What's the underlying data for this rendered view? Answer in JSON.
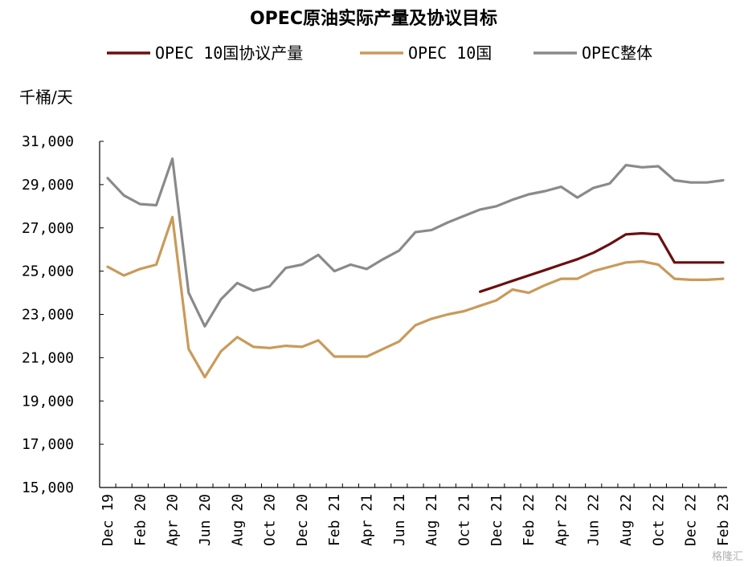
{
  "chart_data": {
    "type": "line",
    "title": "OPEC原油实际产量及协议目标",
    "ylabel": "千桶/天",
    "xlabel": "",
    "ylim": [
      15000,
      31000
    ],
    "yticks": [
      15000,
      17000,
      19000,
      21000,
      23000,
      25000,
      27000,
      29000,
      31000
    ],
    "ytick_labels": [
      "15,000",
      "17,000",
      "19,000",
      "21,000",
      "23,000",
      "25,000",
      "27,000",
      "29,000",
      "31,000"
    ],
    "x": [
      "Dec 19",
      "Jan 20",
      "Feb 20",
      "Mar 20",
      "Apr 20",
      "May 20",
      "Jun 20",
      "Jul 20",
      "Aug 20",
      "Sep 20",
      "Oct 20",
      "Nov 20",
      "Dec 20",
      "Jan 21",
      "Feb 21",
      "Mar 21",
      "Apr 21",
      "May 21",
      "Jun 21",
      "Jul 21",
      "Aug 21",
      "Sep 21",
      "Oct 21",
      "Nov 21",
      "Dec 21",
      "Jan 22",
      "Feb 22",
      "Mar 22",
      "Apr 22",
      "May 22",
      "Jun 22",
      "Jul 22",
      "Aug 22",
      "Sep 22",
      "Oct 22",
      "Nov 22",
      "Dec 22",
      "Jan 23",
      "Feb 23"
    ],
    "xtick_labels": [
      "Dec 19",
      "Feb 20",
      "Apr 20",
      "Jun 20",
      "Aug 20",
      "Oct 20",
      "Dec 20",
      "Feb 21",
      "Apr 21",
      "Jun 21",
      "Aug 21",
      "Oct 21",
      "Dec 21",
      "Feb 22",
      "Apr 22",
      "Jun 22",
      "Aug 22",
      "Oct 22",
      "Dec 22",
      "Feb 23"
    ],
    "legend_position": "top",
    "grid": false,
    "series": [
      {
        "name": "OPEC 10国协议产量",
        "color": "#6b0f0f",
        "values": [
          null,
          null,
          null,
          null,
          null,
          null,
          null,
          null,
          null,
          null,
          null,
          null,
          null,
          null,
          null,
          null,
          null,
          null,
          null,
          null,
          null,
          null,
          null,
          24050,
          24300,
          24550,
          24800,
          25050,
          25300,
          25550,
          25850,
          26250,
          26700,
          26750,
          26700,
          25400,
          25400,
          25400,
          25400
        ]
      },
      {
        "name": "OPEC 10国",
        "color": "#c99a5a",
        "values": [
          25200,
          24800,
          25100,
          25300,
          27500,
          21400,
          20100,
          21300,
          21950,
          21500,
          21450,
          21550,
          21500,
          21800,
          21050,
          21050,
          21050,
          21400,
          21750,
          22500,
          22800,
          23000,
          23150,
          23400,
          23650,
          24150,
          24000,
          24350,
          24650,
          24650,
          25000,
          25200,
          25400,
          25450,
          25300,
          24650,
          24600,
          24600,
          24650
        ]
      },
      {
        "name": "OPEC整体",
        "color": "#8a8a8a",
        "values": [
          29300,
          28500,
          28100,
          28050,
          30200,
          24000,
          22450,
          23700,
          24450,
          24100,
          24300,
          25150,
          25300,
          25750,
          25000,
          25300,
          25100,
          25550,
          25950,
          26800,
          26900,
          27250,
          27550,
          27850,
          28000,
          28300,
          28550,
          28700,
          28900,
          28400,
          28850,
          29050,
          29900,
          29800,
          29850,
          29200,
          29100,
          29100,
          29200
        ]
      }
    ]
  },
  "watermark": "格隆汇"
}
